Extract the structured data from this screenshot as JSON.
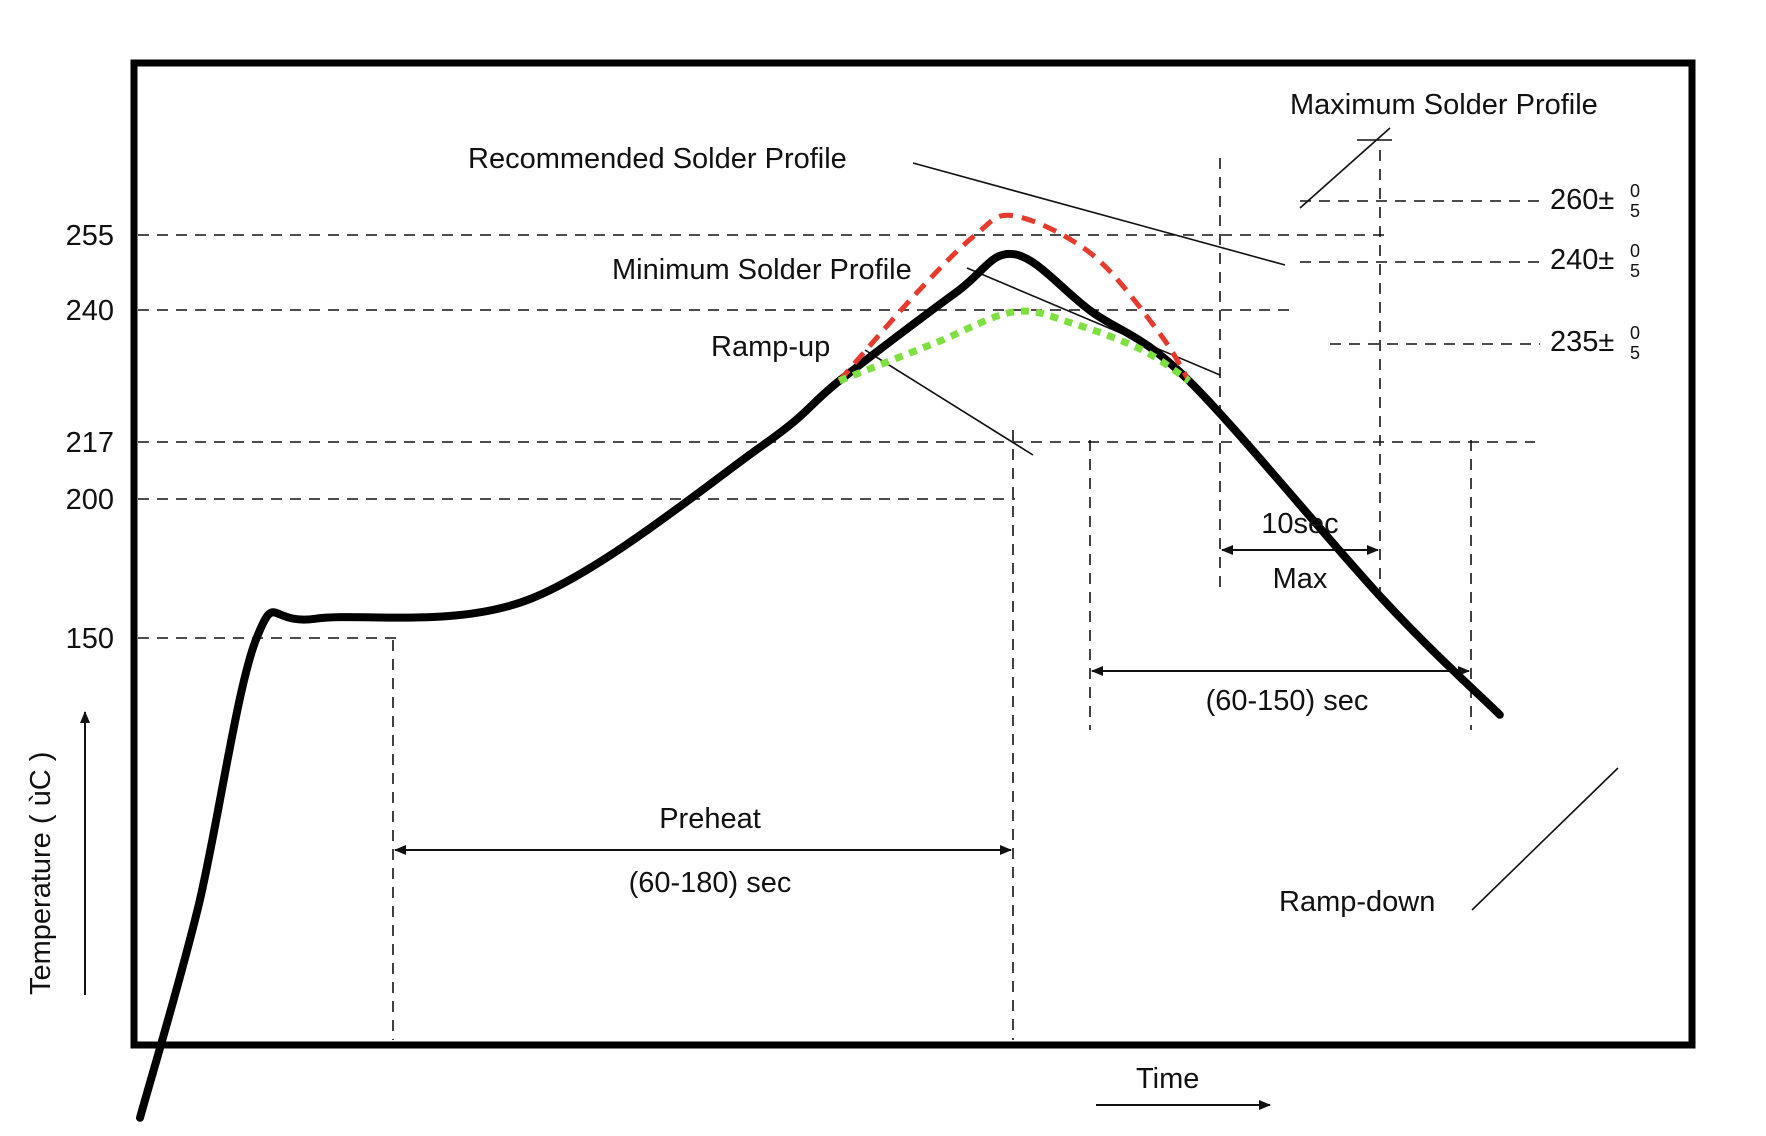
{
  "chart_data": {
    "type": "line",
    "title": "",
    "xlabel": "Time",
    "ylabel": "Temperature ( ùC )",
    "y_ticks": [
      "255",
      "240",
      "217",
      "200",
      "150"
    ],
    "y_tick_values": [
      255,
      240,
      217,
      200,
      150
    ],
    "series": [
      {
        "name": "Recommended Solder Profile",
        "color": "#000000",
        "style": "solid",
        "points": [
          [
            0,
            25
          ],
          [
            15,
            80
          ],
          [
            30,
            150
          ],
          [
            45,
            155
          ],
          [
            100,
            160
          ],
          [
            160,
            200
          ],
          [
            180,
            217
          ],
          [
            210,
            240
          ],
          [
            225,
            250
          ],
          [
            245,
            235
          ],
          [
            270,
            217
          ],
          [
            320,
            160
          ],
          [
            350,
            130
          ]
        ]
      },
      {
        "name": "Maximum Solder Profile",
        "color": "#e53a2c",
        "style": "dashed",
        "points": [
          [
            180,
            217
          ],
          [
            200,
            240
          ],
          [
            215,
            255
          ],
          [
            225,
            260
          ],
          [
            245,
            250
          ],
          [
            262,
            230
          ],
          [
            270,
            217
          ]
        ]
      },
      {
        "name": "Minimum Solder Profile",
        "color": "#7de040",
        "style": "dotted",
        "points": [
          [
            180,
            217
          ],
          [
            205,
            227
          ],
          [
            225,
            235
          ],
          [
            240,
            232
          ],
          [
            258,
            225
          ],
          [
            270,
            217
          ]
        ]
      }
    ],
    "annotations": {
      "recommended": "Recommended Solder Profile",
      "maximum": "Maximum Solder Profile",
      "minimum": "Minimum Solder Profile",
      "ramp_up": "Ramp-up",
      "ramp_down": "Ramp-down",
      "preheat": "Preheat",
      "preheat_range": "(60-180) sec",
      "above_liquidus_range": "(60-150) sec",
      "peak_time": "10sec",
      "peak_time_sub": "Max",
      "peak_260": "260±",
      "peak_240": "240±",
      "peak_235": "235±",
      "tol_plus": "0",
      "tol_minus": "5"
    }
  }
}
